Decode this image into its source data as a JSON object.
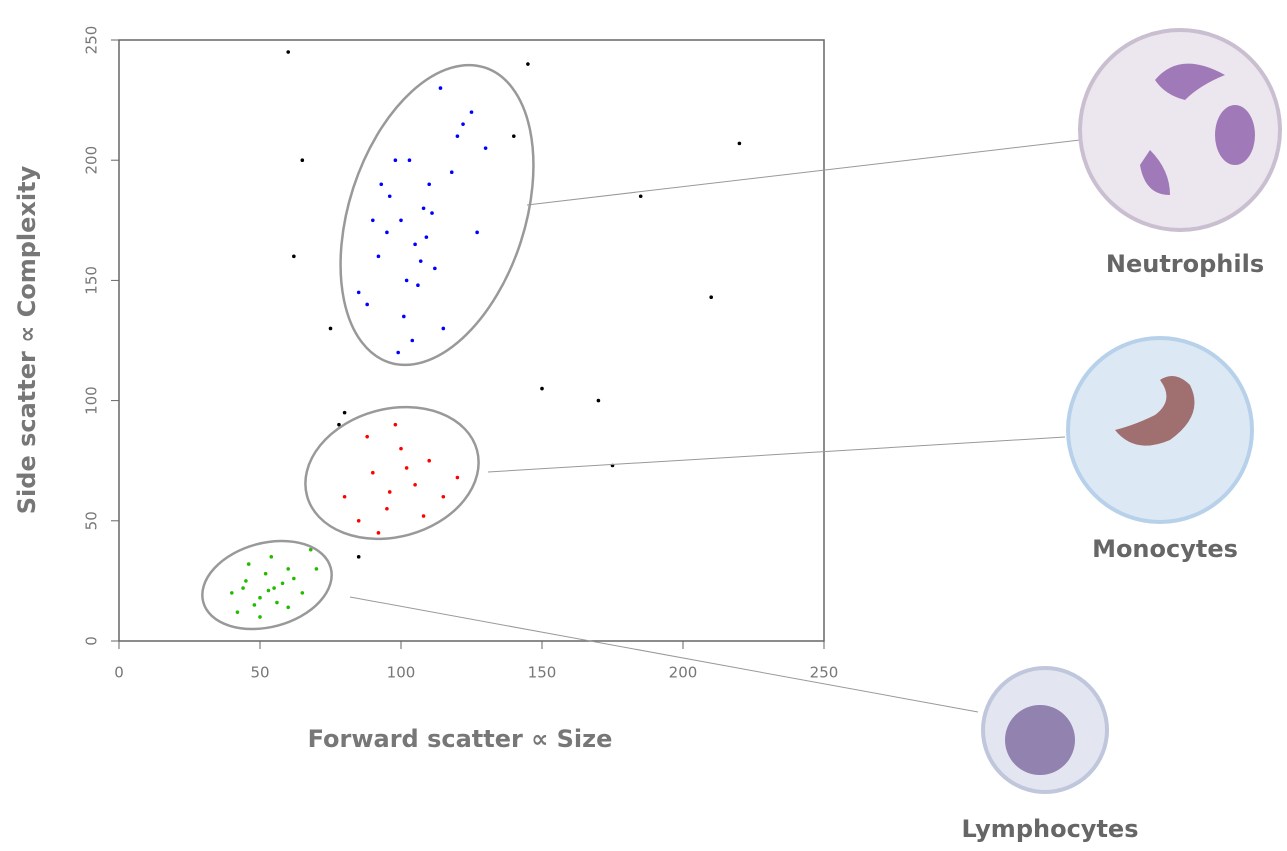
{
  "chart_data": {
    "type": "scatter",
    "x_label": "Forward scatter ∝ Size",
    "y_label": "Side scatter ∝ Complexity",
    "xlim": [
      0,
      250
    ],
    "ylim": [
      0,
      250
    ],
    "xticks": [
      0,
      50,
      100,
      150,
      200,
      250
    ],
    "yticks": [
      0,
      50,
      100,
      150,
      200,
      250
    ],
    "series": [
      {
        "name": "Neutrophils",
        "color": "#0000ff",
        "x": [
          95,
          110,
          102,
          88,
          120,
          105,
          98,
          115,
          108,
          92,
          125,
          100,
          112,
          85,
          118,
          104,
          96,
          130,
          109,
          101,
          90,
          122,
          107,
          114,
          99,
          111,
          93,
          127,
          106,
          103
        ],
        "values": [
          170,
          190,
          150,
          140,
          210,
          165,
          200,
          130,
          180,
          160,
          220,
          175,
          155,
          145,
          195,
          125,
          185,
          205,
          168,
          135,
          175,
          215,
          158,
          230,
          120,
          178,
          190,
          170,
          148,
          200
        ]
      },
      {
        "name": "Monocytes",
        "color": "#ff0000",
        "x": [
          80,
          90,
          95,
          100,
          105,
          110,
          85,
          98,
          115,
          92,
          102,
          88,
          108,
          120,
          96
        ],
        "values": [
          60,
          70,
          55,
          80,
          65,
          75,
          50,
          90,
          60,
          45,
          72,
          85,
          52,
          68,
          62
        ]
      },
      {
        "name": "Lymphocytes",
        "color": "#22bb00",
        "x": [
          40,
          45,
          50,
          55,
          60,
          48,
          52,
          58,
          65,
          42,
          46,
          54,
          62,
          70,
          50,
          56,
          44,
          68,
          53,
          60
        ],
        "values": [
          20,
          25,
          18,
          22,
          30,
          15,
          28,
          24,
          20,
          12,
          32,
          35,
          26,
          30,
          10,
          16,
          22,
          38,
          21,
          14
        ]
      },
      {
        "color": "#000000",
        "x": [
          60,
          65,
          75,
          80,
          140,
          150,
          170,
          185,
          210,
          220,
          62,
          78,
          85,
          145,
          175
        ],
        "values": [
          245,
          200,
          130,
          95,
          210,
          105,
          100,
          185,
          143,
          207,
          160,
          90,
          35,
          240,
          73
        ]
      }
    ]
  }
}
